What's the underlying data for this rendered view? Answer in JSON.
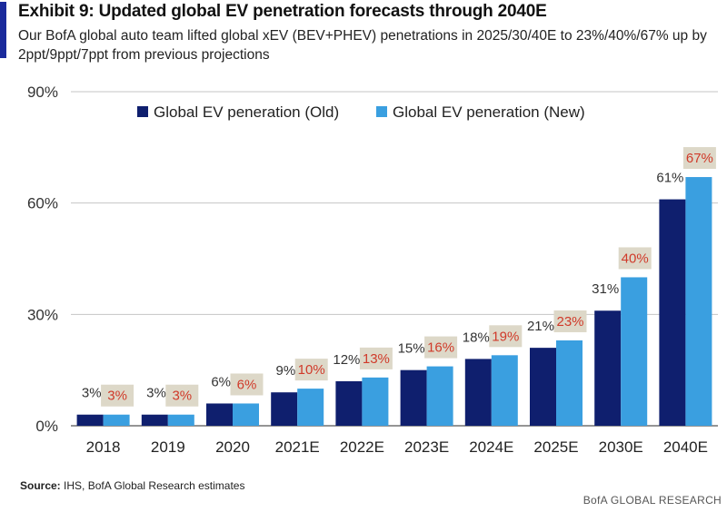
{
  "header": {
    "title": "Exhibit 9: Updated global EV penetration forecasts through 2040E",
    "subtitle": "Our BofA global auto team lifted global xEV (BEV+PHEV) penetrations in 2025/30/40E to 23%/40%/67% up by 2ppt/9ppt/7ppt from previous projections"
  },
  "chart_data": {
    "type": "bar",
    "title": "Exhibit 9: Updated global EV penetration forecasts through 2040E",
    "xlabel": "",
    "ylabel": "",
    "ylim": [
      0,
      90
    ],
    "yticks": [
      0,
      30,
      60,
      90
    ],
    "ytick_labels": [
      "0%",
      "30%",
      "60%",
      "90%"
    ],
    "grid": true,
    "legend_position": "top",
    "categories": [
      "2018",
      "2019",
      "2020",
      "2021E",
      "2022E",
      "2023E",
      "2024E",
      "2025E",
      "2030E",
      "2040E"
    ],
    "series": [
      {
        "name": "Global EV peneration (Old)",
        "color": "#0f1f6e",
        "values": [
          3,
          3,
          6,
          9,
          12,
          15,
          18,
          21,
          31,
          61
        ],
        "labels": [
          "3%",
          "3%",
          "6%",
          "9%",
          "12%",
          "15%",
          "18%",
          "21%",
          "31%",
          "61%"
        ]
      },
      {
        "name": "Global EV peneration (New)",
        "color": "#3a9fe0",
        "values": [
          3,
          3,
          6,
          10,
          13,
          16,
          19,
          23,
          40,
          67
        ],
        "labels": [
          "3%",
          "3%",
          "6%",
          "10%",
          "13%",
          "16%",
          "19%",
          "23%",
          "40%",
          "67%"
        ]
      }
    ],
    "label_box_color": "#ddd8c8",
    "label_new_text_color": "#d03a2a"
  },
  "footer": {
    "source_label": "Source:",
    "source_text": "IHS, BofA Global Research estimates",
    "brand": "BofA GLOBAL RESEARCH"
  }
}
